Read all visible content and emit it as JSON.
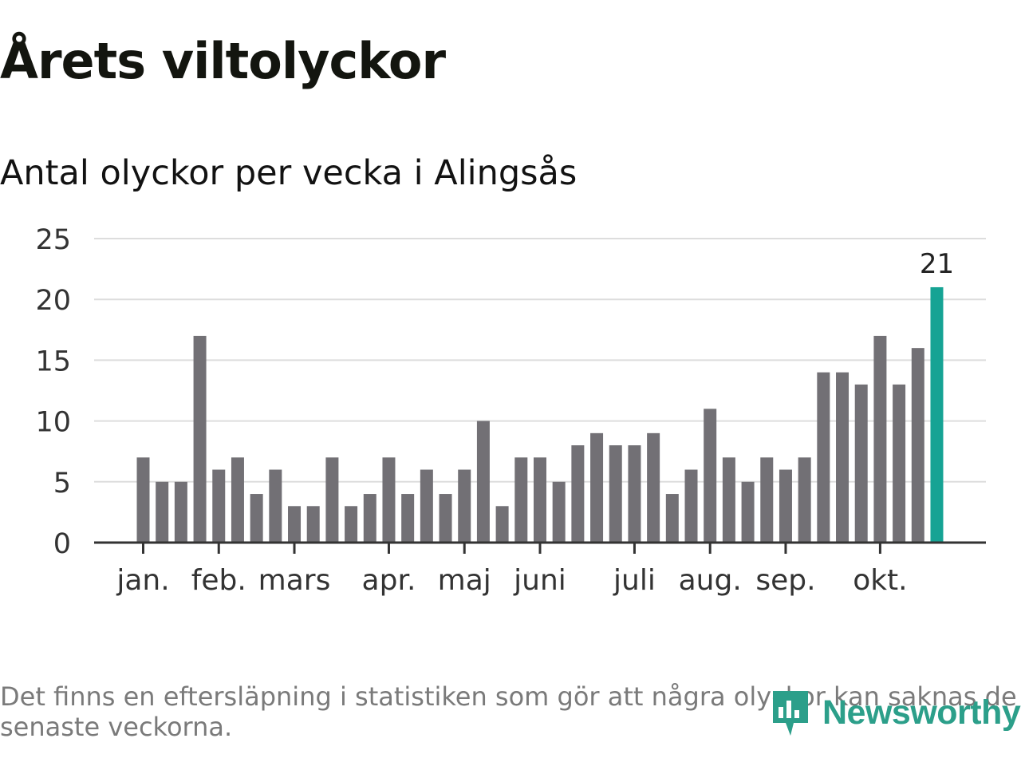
{
  "header": {
    "title": "Årets viltolyckor",
    "subtitle": "Antal olyckor per vecka i Alingsås"
  },
  "chart_data": {
    "type": "bar",
    "ylim": [
      0,
      25
    ],
    "y_ticks": [
      0,
      5,
      10,
      15,
      20,
      25
    ],
    "grid": true,
    "month_labels": [
      {
        "label": "jan.",
        "week_index": 0
      },
      {
        "label": "feb.",
        "week_index": 4
      },
      {
        "label": "mars",
        "week_index": 8
      },
      {
        "label": "apr.",
        "week_index": 13
      },
      {
        "label": "maj",
        "week_index": 17
      },
      {
        "label": "juni",
        "week_index": 21
      },
      {
        "label": "juli",
        "week_index": 26
      },
      {
        "label": "aug.",
        "week_index": 30
      },
      {
        "label": "sep.",
        "week_index": 34
      },
      {
        "label": "okt.",
        "week_index": 39
      }
    ],
    "values": [
      7,
      5,
      5,
      17,
      6,
      7,
      4,
      6,
      3,
      3,
      7,
      3,
      4,
      7,
      4,
      6,
      4,
      6,
      10,
      3,
      7,
      7,
      5,
      8,
      9,
      8,
      8,
      9,
      4,
      6,
      11,
      7,
      5,
      7,
      6,
      7,
      14,
      14,
      13,
      17,
      13,
      16,
      21
    ],
    "highlight_index": 42,
    "highlight_label": "21",
    "colors": {
      "bar": "#727075",
      "highlight": "#16a394",
      "grid": "#dddddd",
      "axis": "#333333",
      "text": "#333333"
    }
  },
  "footer": {
    "note": "Det finns en eftersläpning i statistiken som gör att några olyckor kan saknas de senaste veckorna.",
    "logo_text": "Newsworthy",
    "logo_icon": "newsworthy-chart-icon",
    "logo_color": "#2c9f8a"
  }
}
